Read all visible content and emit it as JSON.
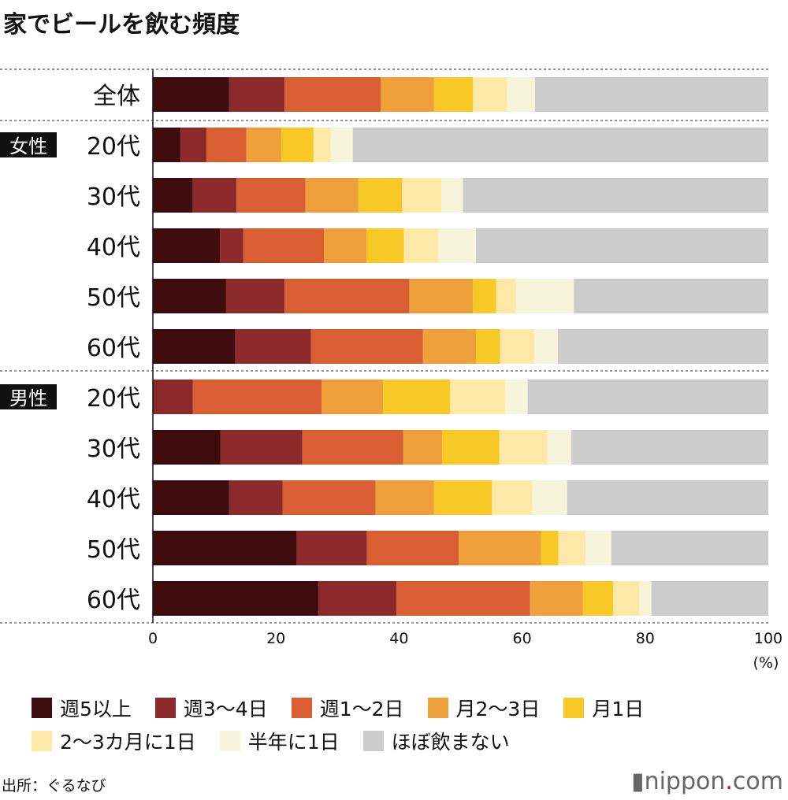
{
  "title": "家でビールを飲む頻度",
  "source": "出所：ぐるなび",
  "logo": {
    "name": "nippon",
    "dot": ".",
    "tld": "com"
  },
  "chart_data": {
    "type": "bar",
    "orientation": "horizontal",
    "stacked": true,
    "title": "家でビールを飲む頻度",
    "xlabel": "(%)",
    "xlim": [
      0,
      100
    ],
    "xticks": [
      0,
      20,
      40,
      60,
      80,
      100
    ],
    "grid": false,
    "legend_position": "bottom",
    "groups": [
      {
        "label": "",
        "categories": [
          "全体"
        ]
      },
      {
        "label": "女性",
        "categories": [
          "20代",
          "30代",
          "40代",
          "50代",
          "60代"
        ]
      },
      {
        "label": "男性",
        "categories": [
          "20代",
          "30代",
          "40代",
          "50代",
          "60代"
        ]
      }
    ],
    "categories": [
      "全体",
      "20代",
      "30代",
      "40代",
      "50代",
      "60代",
      "20代",
      "30代",
      "40代",
      "50代",
      "60代"
    ],
    "series": [
      {
        "name": "週5以上",
        "color": "#3e0c0e",
        "values": [
          12.4,
          4.5,
          6.5,
          10.9,
          11.9,
          13.4,
          0,
          11.0,
          12.4,
          23.4,
          26.9
        ]
      },
      {
        "name": "週3〜4日",
        "color": "#8b292b",
        "values": [
          9.0,
          4.2,
          7.1,
          3.8,
          9.5,
          12.3,
          6.5,
          13.3,
          8.7,
          11.4,
          12.7
        ]
      },
      {
        "name": "週1〜2日",
        "color": "#d95f33",
        "values": [
          15.6,
          6.5,
          11.2,
          13.1,
          20.3,
          18.2,
          20.9,
          16.4,
          15.1,
          14.9,
          21.7
        ]
      },
      {
        "name": "月2〜3日",
        "color": "#f0a03b",
        "values": [
          8.7,
          5.7,
          8.6,
          6.9,
          10.3,
          8.6,
          10.0,
          6.3,
          9.5,
          13.4,
          8.6
        ]
      },
      {
        "name": "月1日",
        "color": "#f8c925",
        "values": [
          6.3,
          5.2,
          7.1,
          6.1,
          3.8,
          3.9,
          10.9,
          9.3,
          9.4,
          2.8,
          4.9
        ]
      },
      {
        "name": "2〜3カ月に1日",
        "color": "#fde8a8",
        "values": [
          5.5,
          2.8,
          6.4,
          5.6,
          3.2,
          5.6,
          8.9,
          7.8,
          6.5,
          4.4,
          4.2
        ]
      },
      {
        "name": "半年に1日",
        "color": "#f7f4dc",
        "values": [
          4.6,
          3.6,
          3.5,
          6.1,
          9.4,
          3.8,
          3.7,
          3.9,
          5.7,
          4.2,
          2.0
        ]
      },
      {
        "name": "ほぼ飲まない",
        "color": "#cccccc",
        "values": [
          37.9,
          67.5,
          49.6,
          47.5,
          31.6,
          34.2,
          39.1,
          32.0,
          32.7,
          25.5,
          19.0
        ]
      }
    ]
  }
}
